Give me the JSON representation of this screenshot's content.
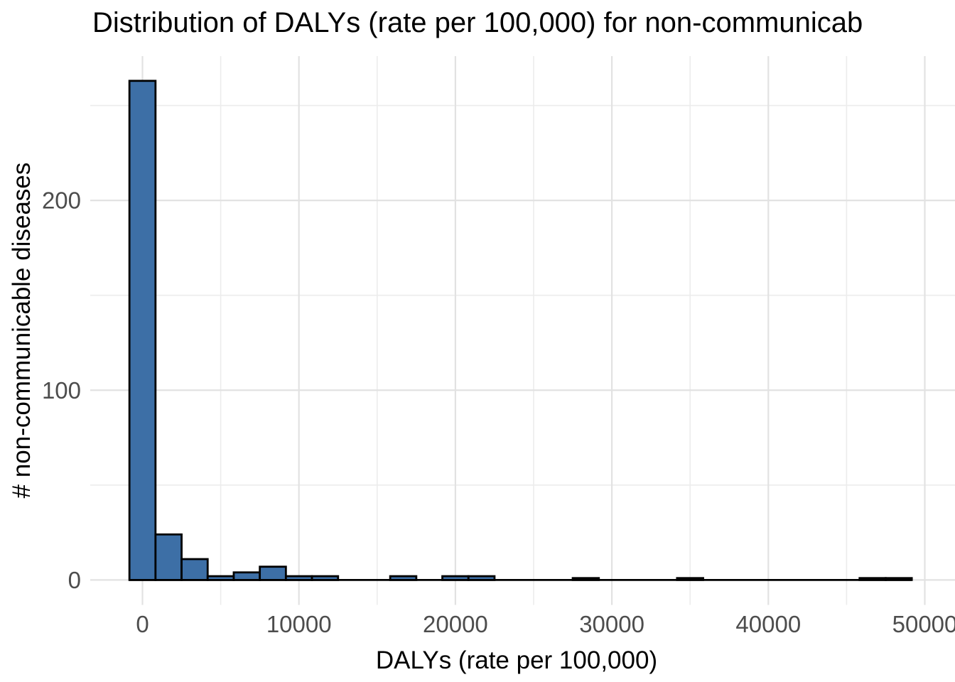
{
  "chart_data": {
    "type": "histogram",
    "title": "Distribution of DALYs (rate per 100,000) for non-communicab",
    "xlabel": "DALYs (rate per 100,000)",
    "ylabel": "# non-communicable diseases",
    "bins": {
      "start": -833.33,
      "width": 1666.67,
      "counts": [
        263,
        24,
        11,
        2,
        4,
        7,
        2,
        2,
        0,
        0,
        2,
        0,
        2,
        2,
        0,
        0,
        0,
        1,
        0,
        0,
        0,
        1,
        0,
        0,
        0,
        0,
        0,
        0,
        1,
        1
      ]
    },
    "x_axis": {
      "tick_values": [
        0,
        10000,
        20000,
        30000,
        40000,
        50000
      ],
      "tick_labels": [
        "0",
        "10000",
        "20000",
        "30000",
        "40000",
        "50000"
      ],
      "minor_values": [
        5000,
        15000,
        25000,
        35000,
        45000
      ],
      "range_shown": [
        -3340,
        51930
      ]
    },
    "y_axis": {
      "tick_values": [
        0,
        100,
        200
      ],
      "tick_labels": [
        "0",
        "100",
        "200"
      ],
      "minor_values": [
        50,
        150,
        250
      ],
      "range_shown": [
        -13.2,
        276
      ]
    },
    "grid": "major+minor",
    "legend": "none",
    "styles": {
      "bar_fill": "#3D6FA6",
      "bar_stroke": "#000000",
      "grid_major_color": "#E2E2E2",
      "grid_minor_color": "#ECECEC",
      "tick_label_color": "#4D4D4D",
      "title_color": "#000000",
      "axis_title_color": "#000000",
      "background": "#FFFFFF"
    }
  }
}
